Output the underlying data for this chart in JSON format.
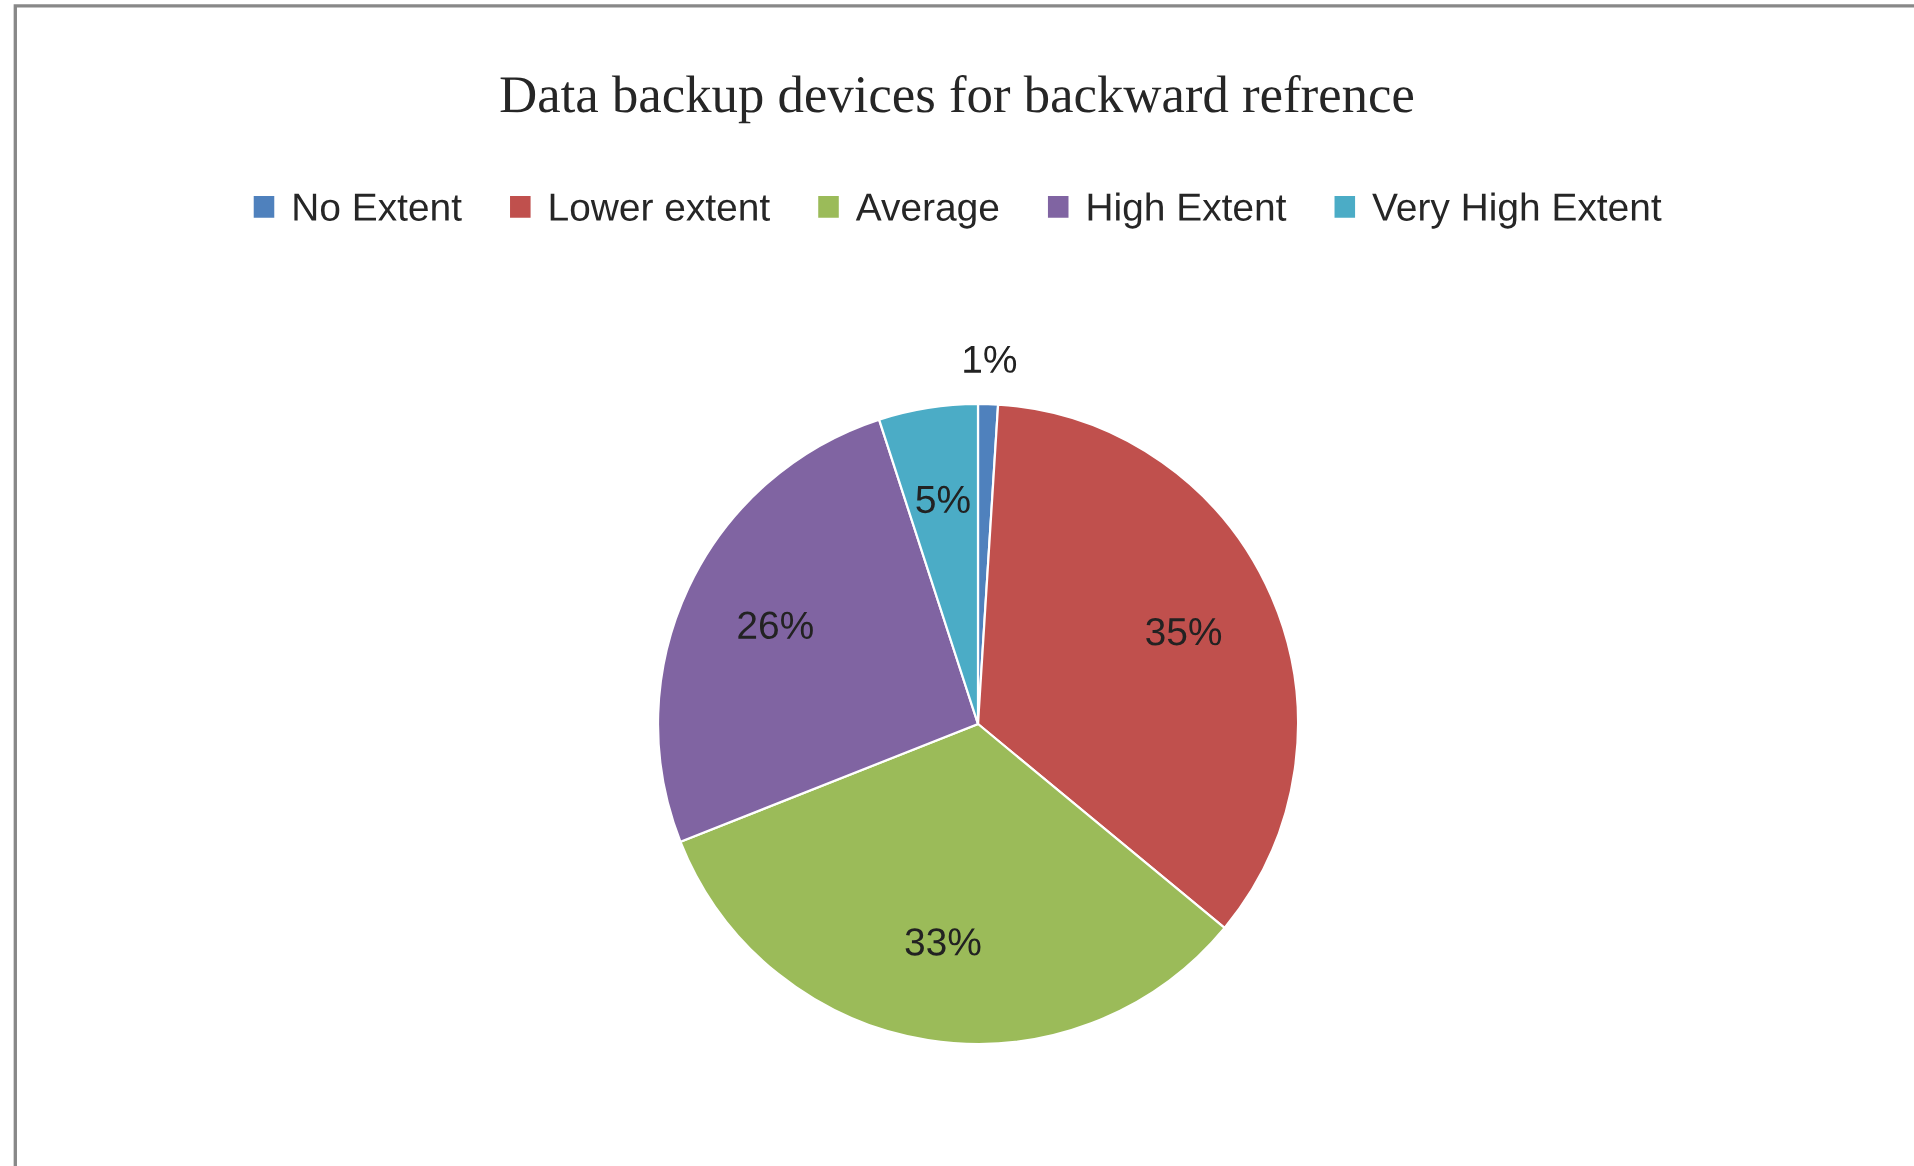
{
  "chart_data": {
    "type": "pie",
    "title": "Data backup devices for backward refrence",
    "categories": [
      "No Extent",
      "Lower extent",
      "Average",
      "High Extent",
      "Very High Extent"
    ],
    "values": [
      1,
      35,
      33,
      26,
      5
    ],
    "value_labels": [
      "1%",
      "35%",
      "33%",
      "26%",
      "5%"
    ],
    "colors": [
      "#4f81bd",
      "#c0504d",
      "#9bbb59",
      "#8064a2",
      "#4bacc6"
    ],
    "legend": "top"
  }
}
